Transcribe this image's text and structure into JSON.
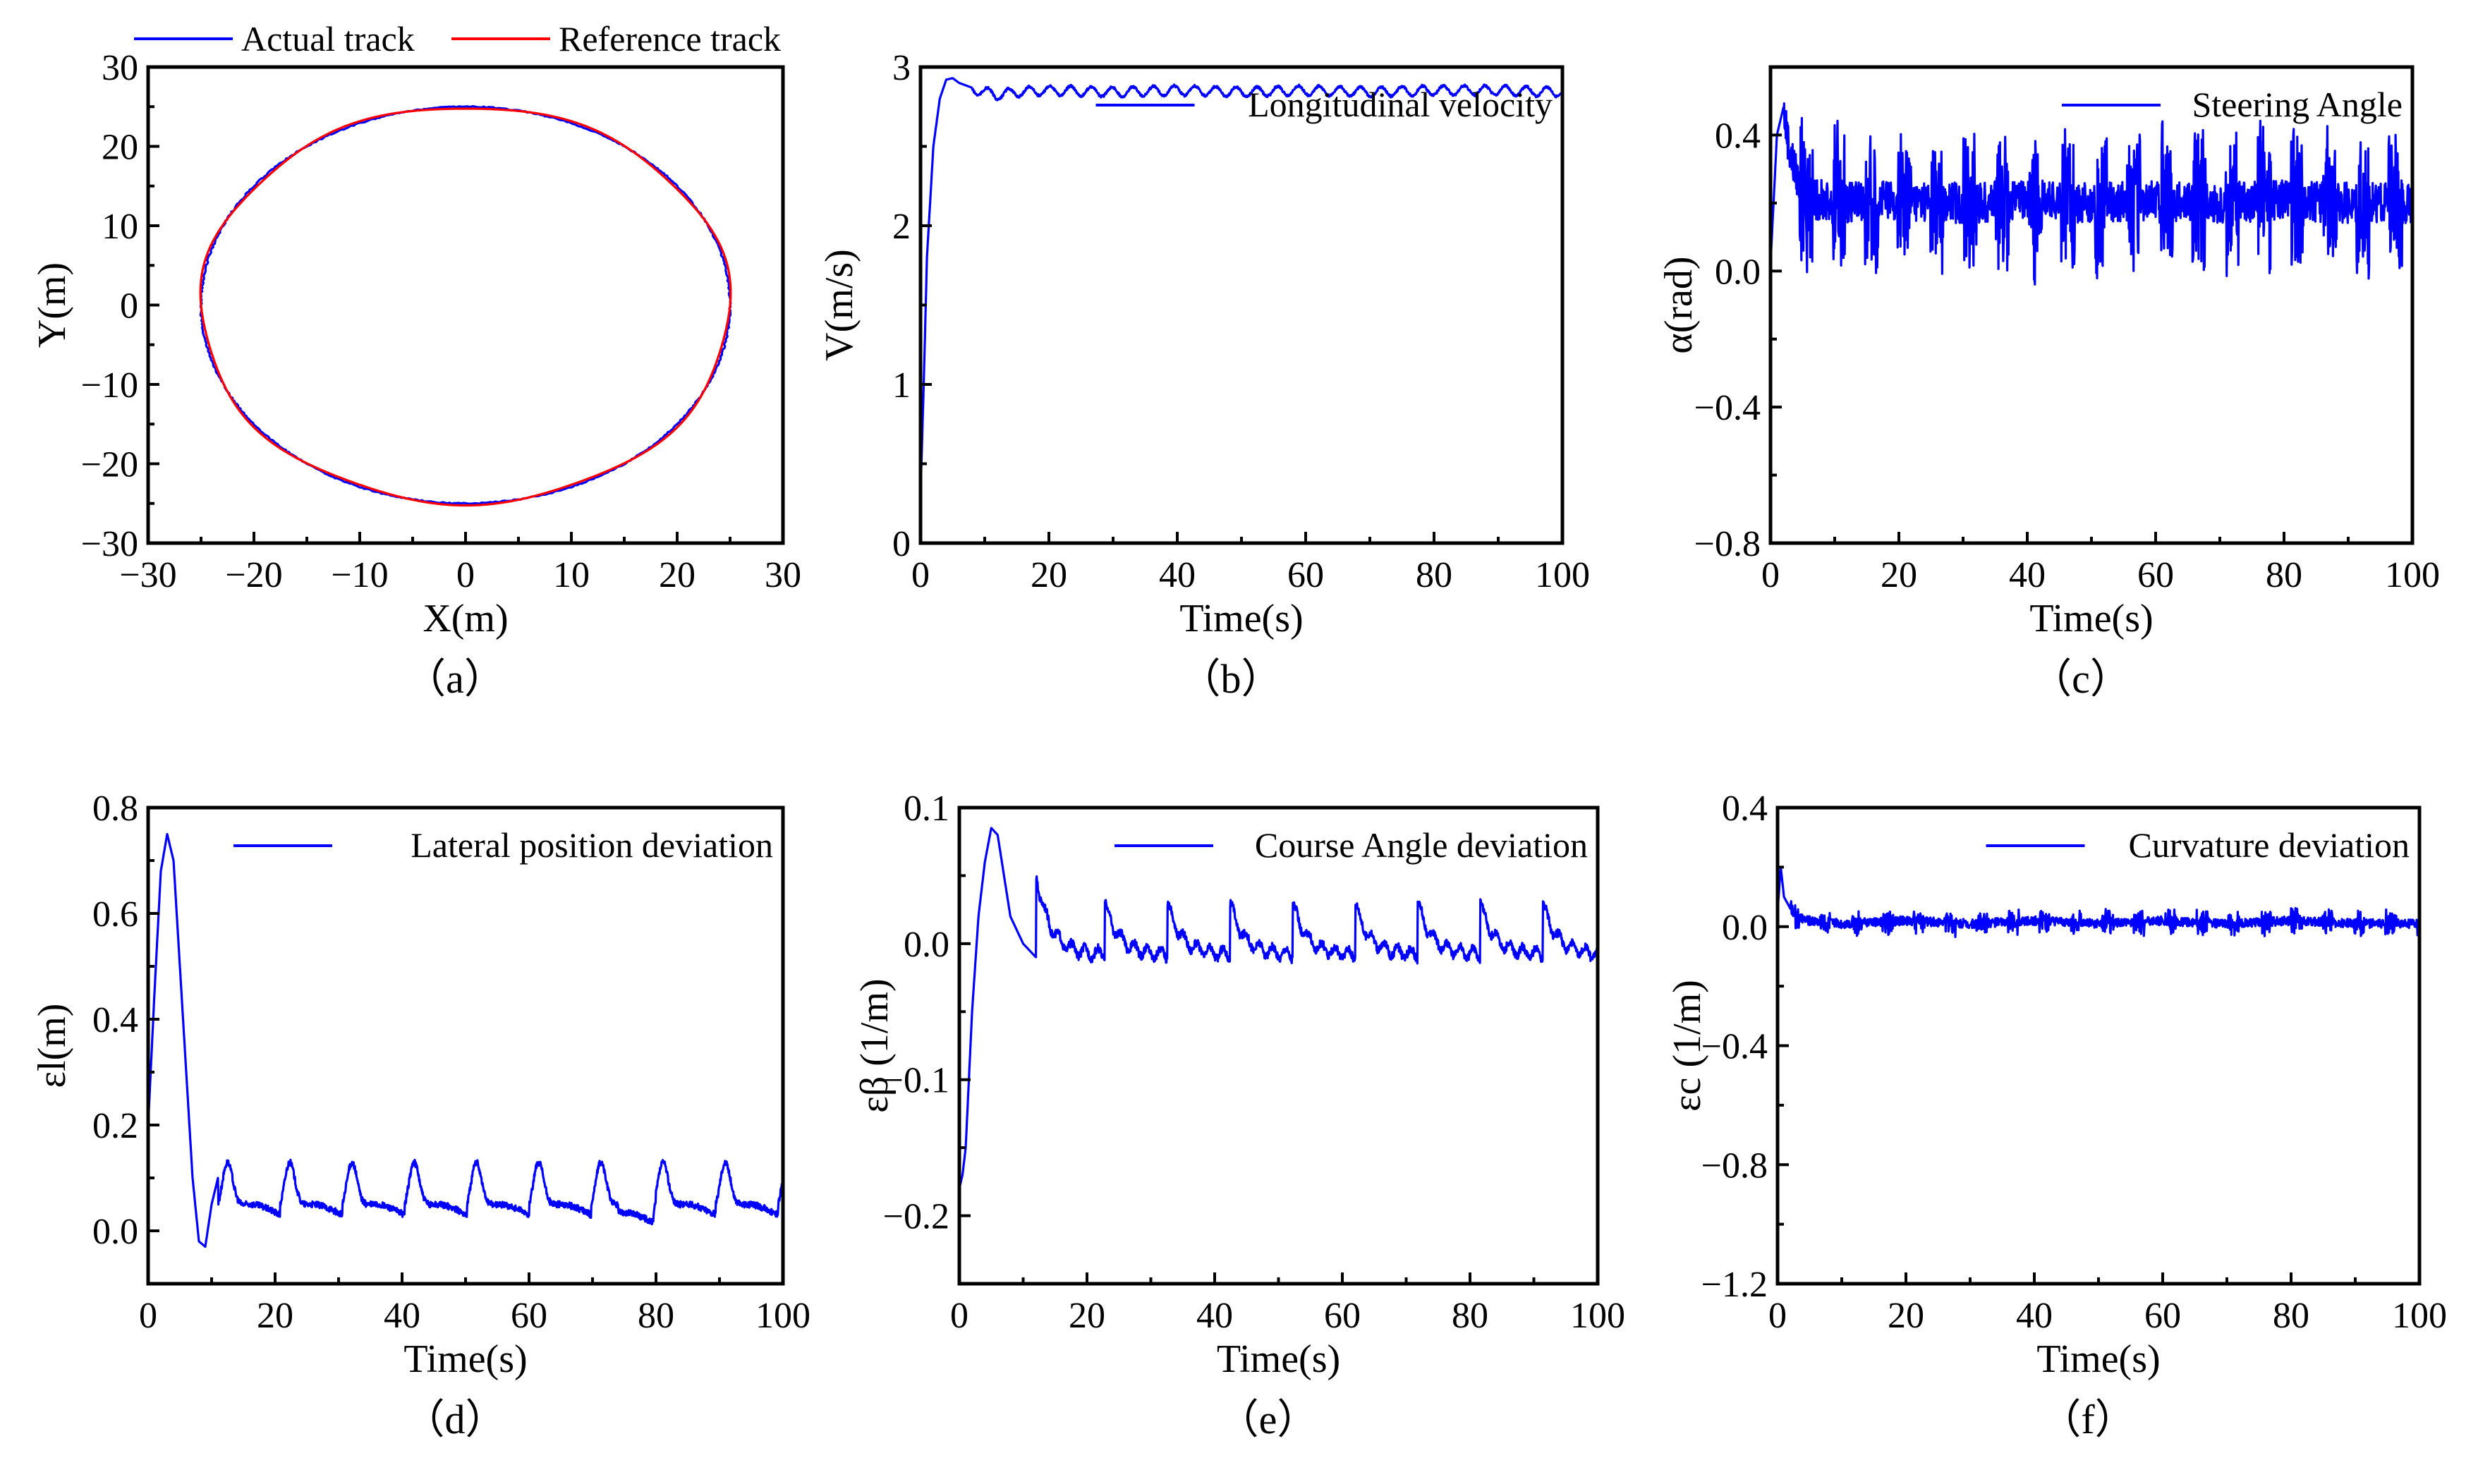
{
  "chart_data": [
    {
      "type": "line",
      "caption": "（a）",
      "xlabel": "X(m)",
      "ylabel": "Y(m)",
      "xlim": [
        -30,
        30
      ],
      "ylim": [
        -30,
        30
      ],
      "xticks": [
        "−30",
        "−20",
        "−10",
        "0",
        "10",
        "20",
        "30"
      ],
      "yticks": [
        "−30",
        "−20",
        "−10",
        "0",
        "10",
        "20",
        "30"
      ],
      "legend_position": "top (above plot)",
      "series": [
        {
          "name": "Actual track",
          "color": "#0000ff",
          "shape": "circle",
          "radius_x": 25,
          "radius_y": 25,
          "center": [
            0,
            0
          ]
        },
        {
          "name": "Reference track",
          "color": "#ff0000",
          "shape": "circle",
          "radius_x": 25,
          "radius_y": 25,
          "center": [
            0,
            0
          ]
        }
      ]
    },
    {
      "type": "line",
      "caption": "（b）",
      "xlabel": "Time(s)",
      "ylabel": "V(m/s)",
      "xlim": [
        0,
        100
      ],
      "ylim": [
        0,
        3
      ],
      "xticks": [
        "0",
        "20",
        "40",
        "60",
        "80",
        "100"
      ],
      "yticks": [
        "0",
        "1",
        "2",
        "3"
      ],
      "legend_position": "top-right",
      "series": [
        {
          "name": "Longitudinal velocity",
          "color": "#0000ff",
          "x": [
            0,
            0.5,
            1,
            2,
            3,
            4,
            5,
            6,
            8,
            10,
            12,
            15,
            20,
            30,
            40,
            50,
            60,
            70,
            80,
            90,
            100
          ],
          "y": [
            0.3,
            1.0,
            1.8,
            2.5,
            2.8,
            2.92,
            2.93,
            2.9,
            2.87,
            2.85,
            2.83,
            2.85,
            2.86,
            2.85,
            2.86,
            2.85,
            2.86,
            2.85,
            2.86,
            2.86,
            2.85
          ]
        }
      ]
    },
    {
      "type": "line",
      "caption": "（c）",
      "xlabel": "Time(s)",
      "ylabel": "α(rad)",
      "xlim": [
        0,
        100
      ],
      "ylim": [
        -0.8,
        0.6
      ],
      "xticks": [
        "0",
        "20",
        "40",
        "60",
        "80",
        "100"
      ],
      "yticks": [
        "−0.8",
        "−0.4",
        "0.0",
        "0.4"
      ],
      "legend_position": "top-right",
      "series": [
        {
          "name": "Steering Angle",
          "color": "#0000ff",
          "x": [
            0,
            1,
            2,
            3,
            5,
            10,
            20,
            30,
            40,
            50,
            60,
            70,
            80,
            90,
            100
          ],
          "y": [
            0.02,
            0.4,
            0.48,
            0.35,
            0.22,
            0.2,
            0.21,
            0.2,
            0.21,
            0.2,
            0.21,
            0.2,
            0.21,
            0.2,
            0.2
          ]
        }
      ]
    },
    {
      "type": "line",
      "caption": "（d）",
      "xlabel": "Time(s)",
      "ylabel": "εl(m)",
      "xlim": [
        0,
        100
      ],
      "ylim": [
        -0.1,
        0.8
      ],
      "xticks": [
        "0",
        "20",
        "40",
        "60",
        "80",
        "100"
      ],
      "yticks": [
        "0.0",
        "0.2",
        "0.4",
        "0.6",
        "0.8"
      ],
      "legend_position": "top-right",
      "series": [
        {
          "name": "Lateral position deviation",
          "color": "#0000ff",
          "x": [
            0,
            1,
            2,
            3,
            4,
            5,
            6,
            7,
            8,
            9,
            10,
            11,
            12,
            14,
            16,
            20,
            30,
            40,
            50,
            60,
            70,
            80,
            90,
            100
          ],
          "y": [
            0.2,
            0.45,
            0.68,
            0.75,
            0.7,
            0.5,
            0.3,
            0.1,
            -0.02,
            -0.03,
            0.05,
            0.1,
            0.13,
            0.06,
            0.05,
            0.1,
            0.05,
            0.12,
            0.05,
            0.12,
            0.05,
            0.03,
            0.12,
            0.08
          ]
        }
      ]
    },
    {
      "type": "line",
      "caption": "（e）",
      "xlabel": "Time(s)",
      "ylabel": "εβ (1/m)",
      "xlim": [
        0,
        100
      ],
      "ylim": [
        -0.25,
        0.1
      ],
      "xticks": [
        "0",
        "20",
        "40",
        "60",
        "80",
        "100"
      ],
      "yticks": [
        "−0.2",
        "−0.1",
        "0.0",
        "0.1"
      ],
      "legend_position": "top-right",
      "series": [
        {
          "name": "Course Angle deviation",
          "color": "#0000ff",
          "x": [
            0,
            0.5,
            1,
            2,
            3,
            4,
            5,
            6,
            7,
            8,
            10,
            12,
            14,
            20,
            30,
            40,
            50,
            60,
            70,
            80,
            90,
            100
          ],
          "y": [
            -0.18,
            -0.17,
            -0.15,
            -0.05,
            0.02,
            0.06,
            0.085,
            0.08,
            0.05,
            0.02,
            0.0,
            -0.01,
            0.03,
            0.01,
            0.03,
            0.0,
            0.03,
            0.0,
            0.03,
            0.0,
            0.03,
            0.0
          ]
        }
      ]
    },
    {
      "type": "line",
      "caption": "（f）",
      "xlabel": "Time(s)",
      "ylabel": "εc (1/m)",
      "xlim": [
        0,
        100
      ],
      "ylim": [
        -1.2,
        0.4
      ],
      "xticks": [
        "0",
        "20",
        "40",
        "60",
        "80",
        "100"
      ],
      "yticks": [
        "−1.2",
        "−0.8",
        "−0.4",
        "0.0",
        "0.4"
      ],
      "legend_position": "top-right",
      "series": [
        {
          "name": "Curvature deviation",
          "color": "#0000ff",
          "x": [
            0,
            0.5,
            1,
            2,
            3,
            5,
            10,
            20,
            30,
            40,
            50,
            60,
            70,
            80,
            90,
            100
          ],
          "y": [
            0.05,
            0.2,
            0.1,
            0.06,
            0.03,
            0.02,
            0.01,
            0.02,
            0.01,
            0.02,
            0.01,
            0.02,
            0.01,
            0.02,
            0.01,
            0.01
          ]
        }
      ]
    }
  ]
}
